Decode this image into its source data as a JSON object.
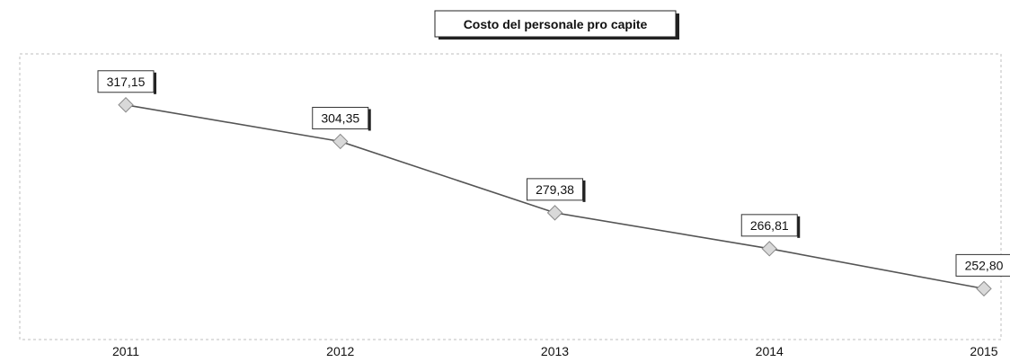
{
  "chart_data": {
    "type": "line",
    "title": "Costo del personale pro capite",
    "xlabel": "",
    "ylabel": "",
    "categories": [
      "2011",
      "2012",
      "2013",
      "2014",
      "2015"
    ],
    "series": [
      {
        "values": [
          317.15,
          304.35,
          279.38,
          266.81,
          252.8
        ],
        "data_labels": [
          "317,15",
          "304,35",
          "279,38",
          "266,81",
          "252,80"
        ]
      }
    ],
    "ylim": [
      235,
      335
    ],
    "grid": false,
    "legend": "none",
    "colors": {
      "line": "#555555",
      "marker_fill": "#d9d9d9",
      "marker_stroke": "#8a8a8a"
    }
  }
}
